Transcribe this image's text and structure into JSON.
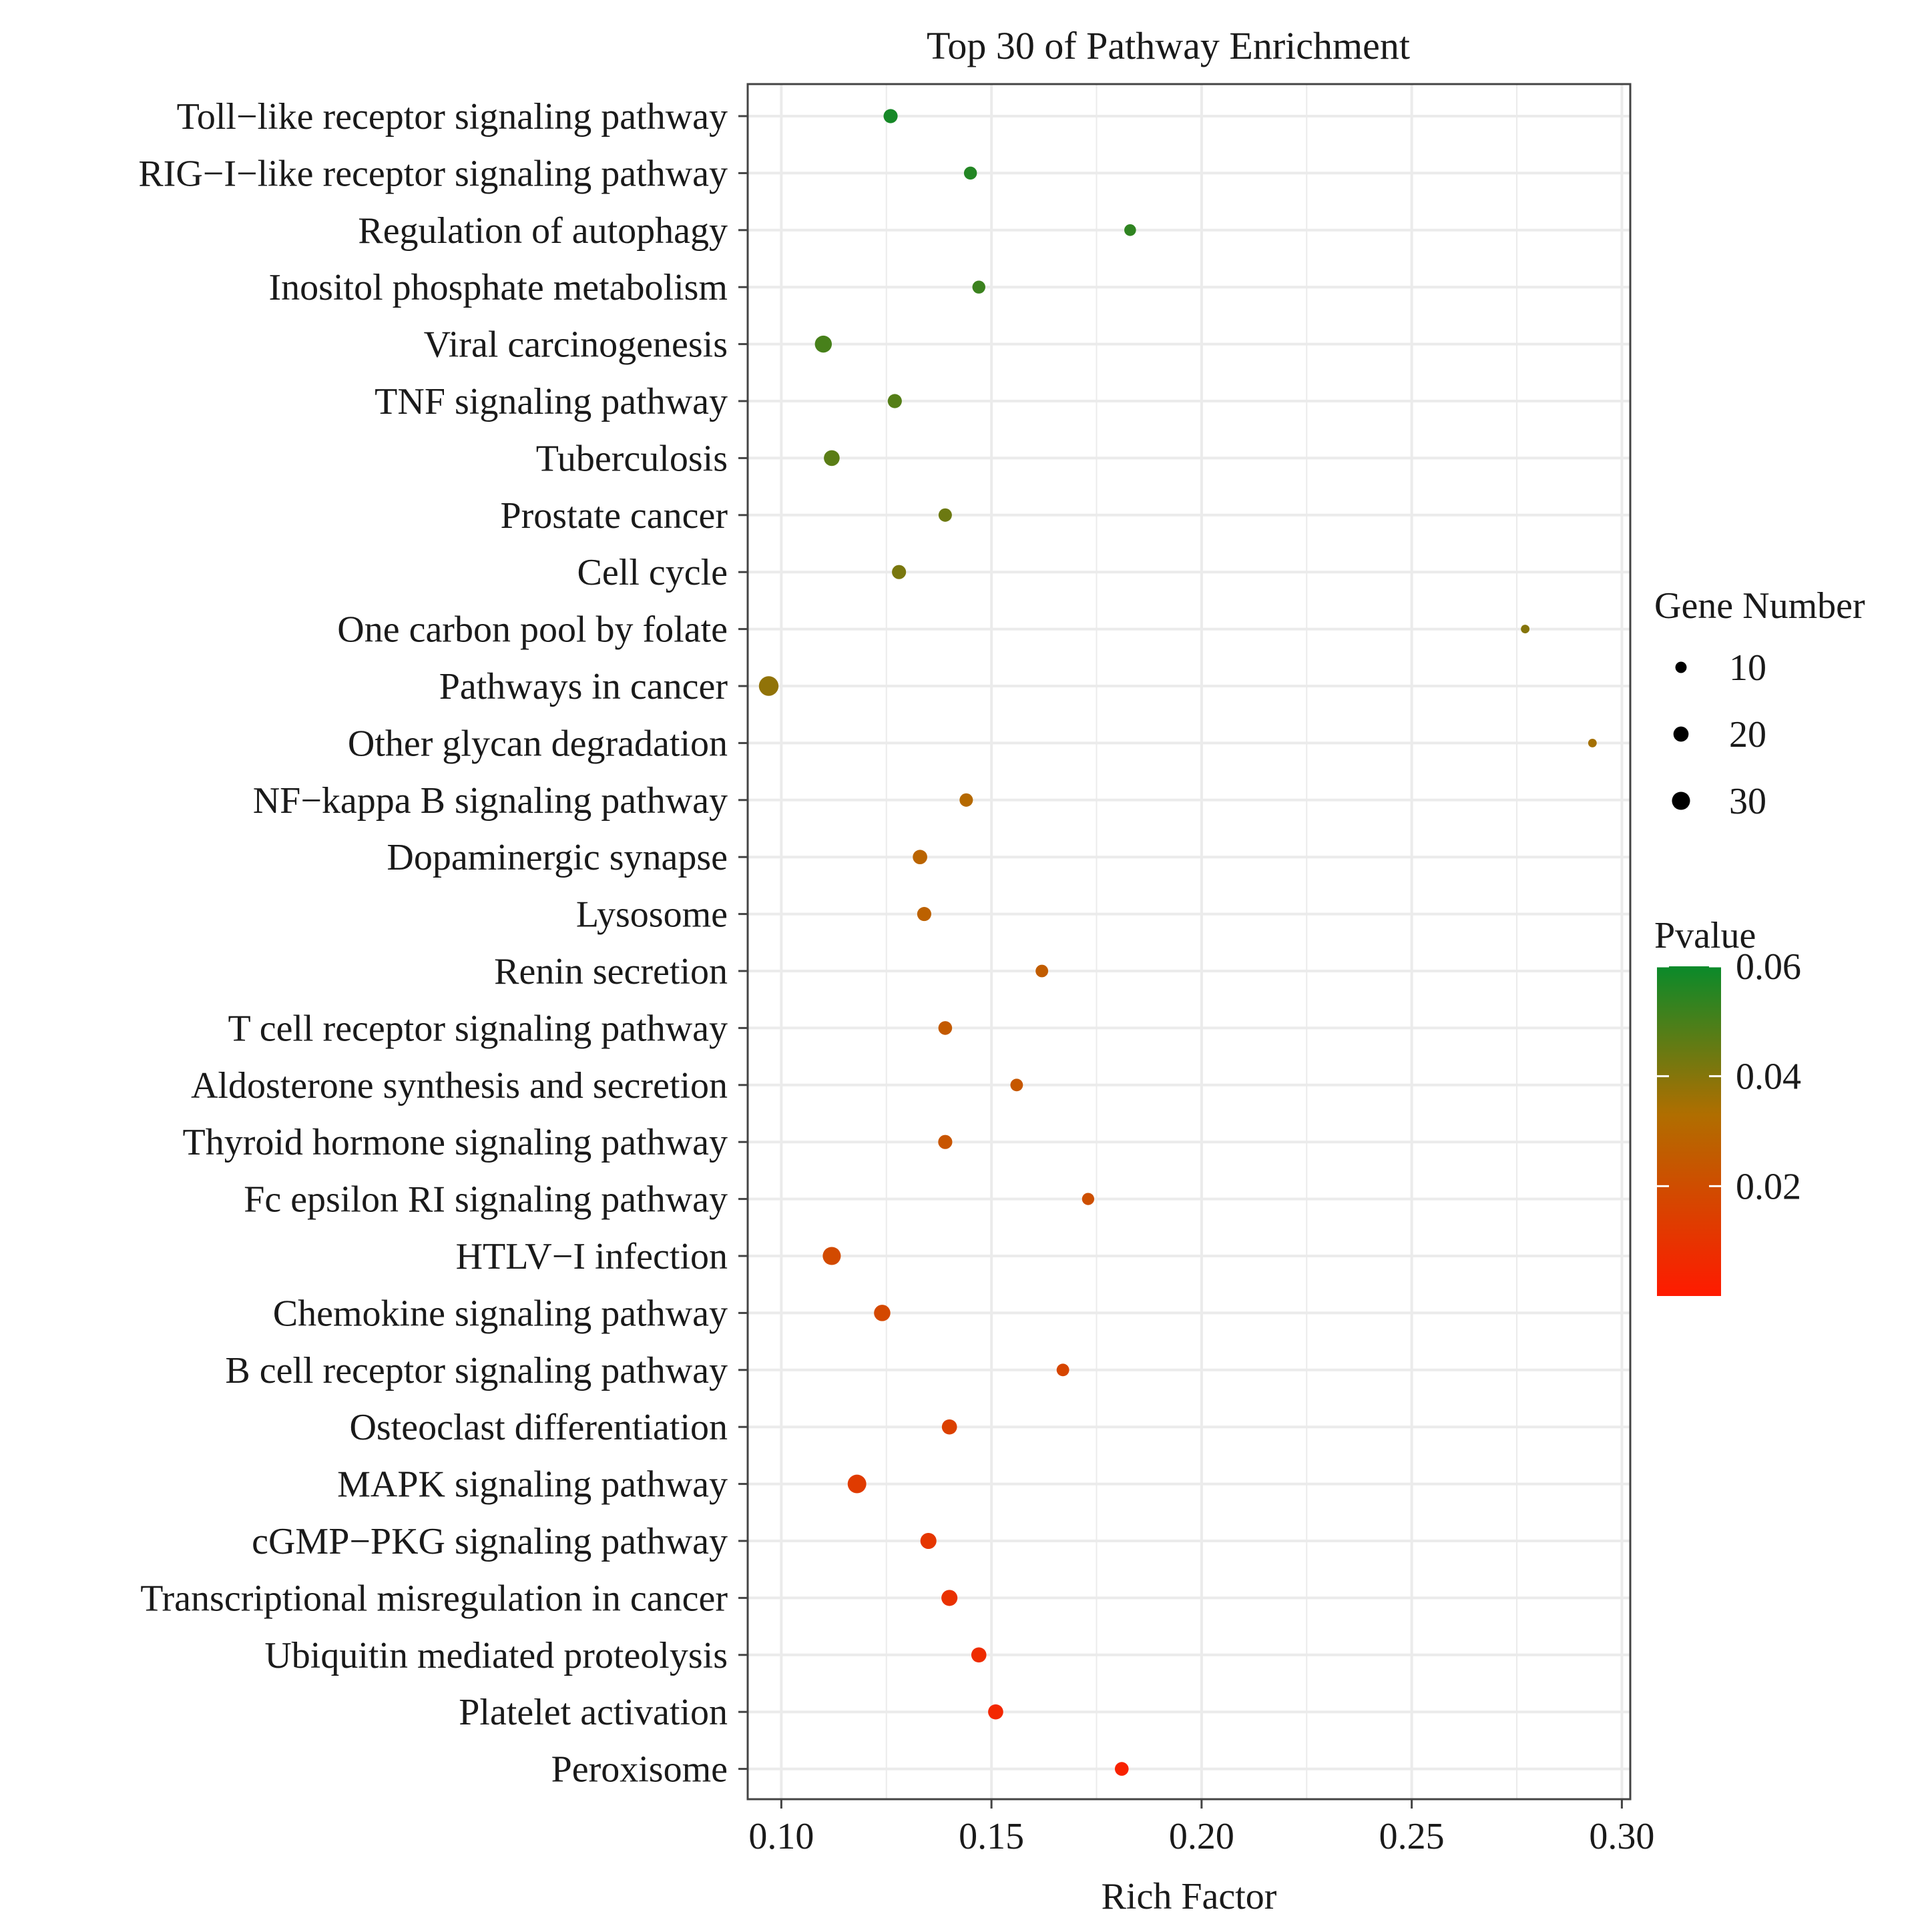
{
  "chart_data": {
    "type": "scatter",
    "title": "Top 30 of Pathway Enrichment",
    "xlabel": "Rich Factor",
    "ylabel": "",
    "xlim": [
      0.092,
      0.302
    ],
    "x_ticks": [
      0.1,
      0.15,
      0.2,
      0.25,
      0.3
    ],
    "x_tick_labels": [
      "0.10",
      "0.15",
      "0.20",
      "0.25",
      "0.30"
    ],
    "grid": true,
    "size_legend": {
      "title": "Gene Number",
      "values": [
        10,
        20,
        30
      ],
      "labels": [
        "10",
        "20",
        "30"
      ]
    },
    "color_legend": {
      "title": "Pvalue",
      "min": 0.0,
      "max": 0.06,
      "ticks": [
        0.06,
        0.04,
        0.02
      ],
      "tick_labels": [
        "0.06",
        "0.04",
        "0.02"
      ],
      "low_color": "#ff1a00",
      "mid_color": "#b06e00",
      "high_color": "#0a8a2a"
    },
    "points": [
      {
        "pathway": "Toll−like receptor signaling pathway",
        "rich_factor": 0.126,
        "gene_number": 17,
        "pvalue": 0.058
      },
      {
        "pathway": "RIG−I−like receptor signaling pathway",
        "rich_factor": 0.145,
        "gene_number": 14,
        "pvalue": 0.056
      },
      {
        "pathway": "Regulation of autophagy",
        "rich_factor": 0.183,
        "gene_number": 11,
        "pvalue": 0.054
      },
      {
        "pathway": "Inositol phosphate metabolism",
        "rich_factor": 0.147,
        "gene_number": 14,
        "pvalue": 0.052
      },
      {
        "pathway": "Viral carcinogenesis",
        "rich_factor": 0.11,
        "gene_number": 26,
        "pvalue": 0.05
      },
      {
        "pathway": "TNF signaling pathway",
        "rich_factor": 0.127,
        "gene_number": 17,
        "pvalue": 0.048
      },
      {
        "pathway": "Tuberculosis",
        "rich_factor": 0.112,
        "gene_number": 22,
        "pvalue": 0.047
      },
      {
        "pathway": "Prostate cancer",
        "rich_factor": 0.139,
        "gene_number": 15,
        "pvalue": 0.044
      },
      {
        "pathway": "Cell cycle",
        "rich_factor": 0.128,
        "gene_number": 17,
        "pvalue": 0.042
      },
      {
        "pathway": "One carbon pool by folate",
        "rich_factor": 0.277,
        "gene_number": 5,
        "pvalue": 0.04
      },
      {
        "pathway": "Pathways in cancer",
        "rich_factor": 0.097,
        "gene_number": 36,
        "pvalue": 0.038
      },
      {
        "pathway": "Other glycan degradation",
        "rich_factor": 0.293,
        "gene_number": 5,
        "pvalue": 0.035
      },
      {
        "pathway": "NF−kappa B signaling pathway",
        "rich_factor": 0.144,
        "gene_number": 15,
        "pvalue": 0.031
      },
      {
        "pathway": "Dopaminergic synapse",
        "rich_factor": 0.133,
        "gene_number": 18,
        "pvalue": 0.029
      },
      {
        "pathway": "Lysosome",
        "rich_factor": 0.134,
        "gene_number": 17,
        "pvalue": 0.028
      },
      {
        "pathway": "Renin secretion",
        "rich_factor": 0.162,
        "gene_number": 13,
        "pvalue": 0.026
      },
      {
        "pathway": "T cell receptor signaling pathway",
        "rich_factor": 0.139,
        "gene_number": 16,
        "pvalue": 0.025
      },
      {
        "pathway": "Aldosterone synthesis and secretion",
        "rich_factor": 0.156,
        "gene_number": 13,
        "pvalue": 0.024
      },
      {
        "pathway": "Thyroid hormone signaling pathway",
        "rich_factor": 0.139,
        "gene_number": 17,
        "pvalue": 0.023
      },
      {
        "pathway": "Fc epsilon RI signaling pathway",
        "rich_factor": 0.173,
        "gene_number": 12,
        "pvalue": 0.021
      },
      {
        "pathway": "HTLV−I infection",
        "rich_factor": 0.112,
        "gene_number": 30,
        "pvalue": 0.019
      },
      {
        "pathway": "Chemokine signaling pathway",
        "rich_factor": 0.124,
        "gene_number": 24,
        "pvalue": 0.018
      },
      {
        "pathway": "B cell receptor signaling pathway",
        "rich_factor": 0.167,
        "gene_number": 13,
        "pvalue": 0.017
      },
      {
        "pathway": "Osteoclast differentiation",
        "rich_factor": 0.14,
        "gene_number": 20,
        "pvalue": 0.015
      },
      {
        "pathway": "MAPK signaling pathway",
        "rich_factor": 0.118,
        "gene_number": 32,
        "pvalue": 0.013
      },
      {
        "pathway": "cGMP−PKG signaling pathway",
        "rich_factor": 0.135,
        "gene_number": 23,
        "pvalue": 0.011
      },
      {
        "pathway": "Transcriptional misregulation in cancer",
        "rich_factor": 0.14,
        "gene_number": 23,
        "pvalue": 0.009
      },
      {
        "pathway": "Ubiquitin mediated proteolysis",
        "rich_factor": 0.147,
        "gene_number": 20,
        "pvalue": 0.007
      },
      {
        "pathway": "Platelet activation",
        "rich_factor": 0.151,
        "gene_number": 20,
        "pvalue": 0.005
      },
      {
        "pathway": "Peroxisome",
        "rich_factor": 0.181,
        "gene_number": 16,
        "pvalue": 0.003
      }
    ]
  }
}
